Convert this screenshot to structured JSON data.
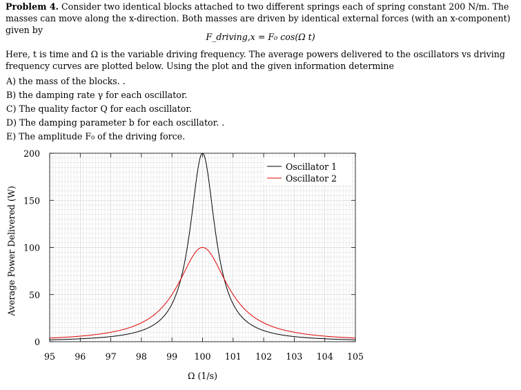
{
  "problem": {
    "label": "Problem 4.",
    "text1": " Consider two identical blocks attached to two different springs each of spring constant 200 N/m. The masses can move along the x-direction. Both masses are driven by identical external forces (with an x-component) given by",
    "equation": "F_driving,x = F₀ cos(Ω t)",
    "text2": "Here, t is time and Ω is the variable driving frequency. The average powers delivered to the oscillators vs driving frequency curves are plotted below. Using the plot and the given information determine",
    "questions": [
      "A) the mass of the blocks. .",
      "B) the damping rate γ for each oscillator.",
      "C) The quality factor Q for each oscillator.",
      "D) The damping parameter b for each oscillator. .",
      "E) The amplitude F₀ of the driving force."
    ]
  },
  "chart_data": {
    "type": "line",
    "title": "",
    "xlabel": "Ω (1/s)",
    "ylabel": "Average Power Delivered (W)",
    "xlim": [
      95,
      105
    ],
    "ylim": [
      0,
      200
    ],
    "x_ticks": [
      "95",
      "96",
      "97",
      "98",
      "99",
      "100",
      "101",
      "102",
      "103",
      "104",
      "105"
    ],
    "y_ticks": [
      "0",
      "50",
      "100",
      "150",
      "200"
    ],
    "grid": true,
    "legend_position": "top-right",
    "series": [
      {
        "name": "Oscillator 1",
        "color": "#000000",
        "peak_x": 100,
        "peak_y": 200,
        "fwhm": 1,
        "x": [
          95,
          96,
          97,
          98,
          99,
          99.5,
          100,
          100.5,
          101,
          102,
          103,
          104,
          105
        ],
        "y": [
          1.9,
          3.1,
          5.4,
          11.8,
          40,
          100,
          200,
          100,
          40,
          11.8,
          5.4,
          3.1,
          1.9
        ]
      },
      {
        "name": "Oscillator 2",
        "color": "#e00000",
        "peak_x": 100,
        "peak_y": 100,
        "fwhm": 2,
        "x": [
          95,
          96,
          97,
          98,
          99,
          99.5,
          100,
          100.5,
          101,
          102,
          103,
          104,
          105
        ],
        "y": [
          3.8,
          5.9,
          10,
          20,
          50,
          80,
          100,
          80,
          50,
          20,
          10,
          5.9,
          3.8
        ]
      }
    ]
  }
}
